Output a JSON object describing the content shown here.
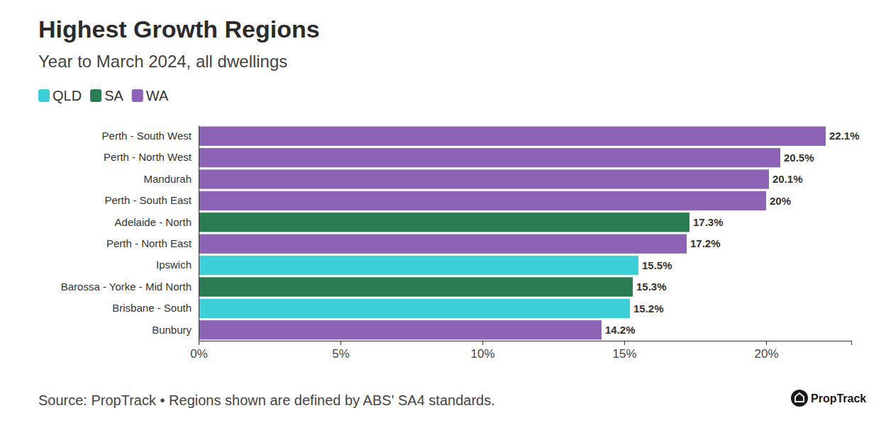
{
  "chart_data": {
    "type": "bar",
    "orientation": "horizontal",
    "title": "Highest Growth Regions",
    "subtitle": "Year to March 2024, all dwellings",
    "source": "Source: PropTrack • Regions shown are defined by ABS' SA4 standards.",
    "logo": "PropTrack",
    "categories": [
      "Perth - South West",
      "Perth - North West",
      "Mandurah",
      "Perth - South East",
      "Adelaide - North",
      "Perth - North East",
      "Ipswich",
      "Barossa - Yorke - Mid North",
      "Brisbane - South",
      "Bunbury"
    ],
    "series": [
      {
        "name": "QLD",
        "color": "#3ccfd7",
        "values": [
          null,
          null,
          null,
          null,
          null,
          null,
          15.5,
          null,
          15.2,
          null
        ],
        "value_labels": [
          null,
          null,
          null,
          null,
          null,
          null,
          "15.5%",
          null,
          "15.2%",
          null
        ]
      },
      {
        "name": "SA",
        "color": "#2a7c52",
        "values": [
          null,
          null,
          null,
          null,
          17.3,
          null,
          null,
          15.3,
          null,
          null
        ],
        "value_labels": [
          null,
          null,
          null,
          null,
          "17.3%",
          null,
          null,
          "15.3%",
          null,
          null
        ]
      },
      {
        "name": "WA",
        "color": "#8c63b5",
        "values": [
          22.1,
          20.5,
          20.1,
          20,
          null,
          17.2,
          null,
          null,
          null,
          14.2
        ],
        "value_labels": [
          "22.1%",
          "20.5%",
          "20.1%",
          "20%",
          null,
          "17.2%",
          null,
          null,
          null,
          "14.2%"
        ]
      }
    ],
    "xlim": [
      0,
      23
    ],
    "xticks": [
      {
        "value": 0,
        "label": "0%"
      },
      {
        "value": 5,
        "label": "5%"
      },
      {
        "value": 10,
        "label": "10%"
      },
      {
        "value": 15,
        "label": "15%"
      },
      {
        "value": 20,
        "label": "20%"
      }
    ],
    "grid": false,
    "legend": "top-left",
    "data_labels": true
  }
}
